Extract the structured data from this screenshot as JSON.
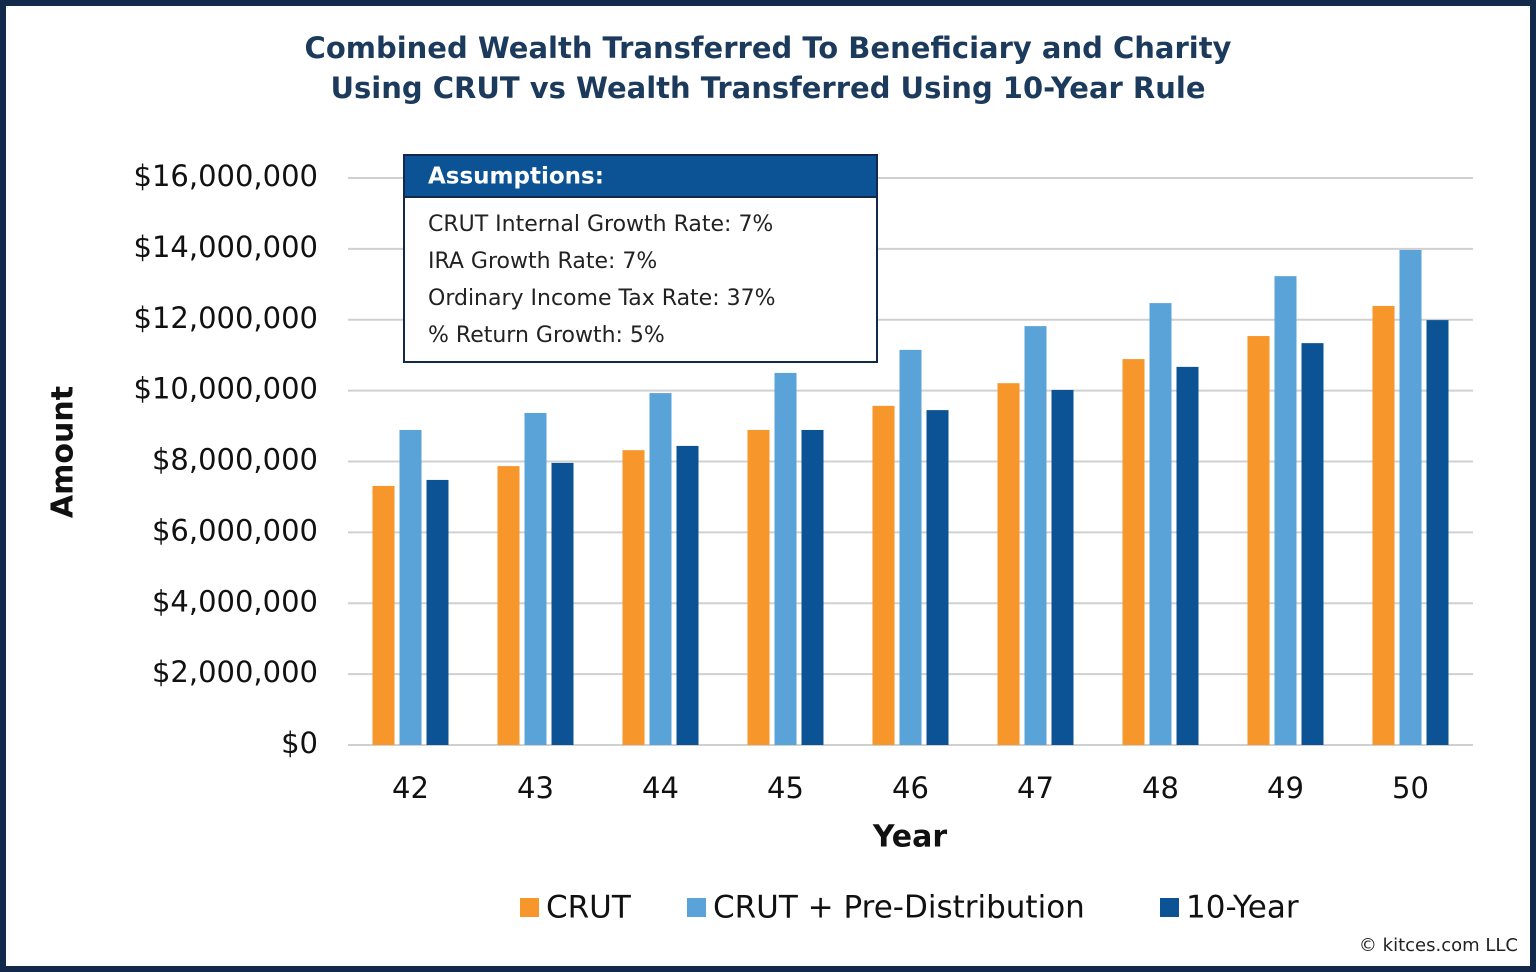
{
  "chart_data": {
    "type": "bar",
    "title": [
      "Combined Wealth Transferred To Beneficiary and Charity",
      "Using CRUT vs Wealth Transferred Using 10-Year Rule"
    ],
    "x_label": "Year",
    "y_label": "Amount",
    "categories": [
      "42",
      "43",
      "44",
      "45",
      "46",
      "47",
      "48",
      "49",
      "50"
    ],
    "series": [
      {
        "name": "CRUT",
        "color": "#f7962a",
        "values": [
          7310000,
          7870000,
          8320000,
          8890000,
          9570000,
          10210000,
          10890000,
          11540000,
          12390000
        ]
      },
      {
        "name": "CRUT + Pre-Distribution",
        "color": "#5aa3d8",
        "values": [
          8890000,
          9370000,
          9930000,
          10500000,
          11150000,
          11820000,
          12470000,
          13230000,
          13970000
        ]
      },
      {
        "name": "10-Year",
        "color": "#0b5394",
        "values": [
          7480000,
          7960000,
          8440000,
          8890000,
          9450000,
          10020000,
          10670000,
          11340000,
          11990000
        ]
      }
    ],
    "ylim": [
      0,
      16000000
    ],
    "yticks": [
      {
        "value": 0,
        "label": "$0"
      },
      {
        "value": 2000000,
        "label": "$2,000,000"
      },
      {
        "value": 4000000,
        "label": "$4,000,000"
      },
      {
        "value": 6000000,
        "label": "$6,000,000"
      },
      {
        "value": 8000000,
        "label": "$8,000,000"
      },
      {
        "value": 10000000,
        "label": "$10,000,000"
      },
      {
        "value": 12000000,
        "label": "$12,000,000"
      },
      {
        "value": 14000000,
        "label": "$14,000,000"
      },
      {
        "value": 16000000,
        "label": "$16,000,000"
      }
    ],
    "grid": true,
    "legend": "bottom",
    "annotation": {
      "title": "Assumptions:",
      "lines": [
        "CRUT Internal Growth Rate: 7%",
        "IRA Growth Rate: 7%",
        "Ordinary Income Tax Rate: 37%",
        "% Return Growth: 5%"
      ]
    },
    "credit": "© kitces.com LLC"
  }
}
